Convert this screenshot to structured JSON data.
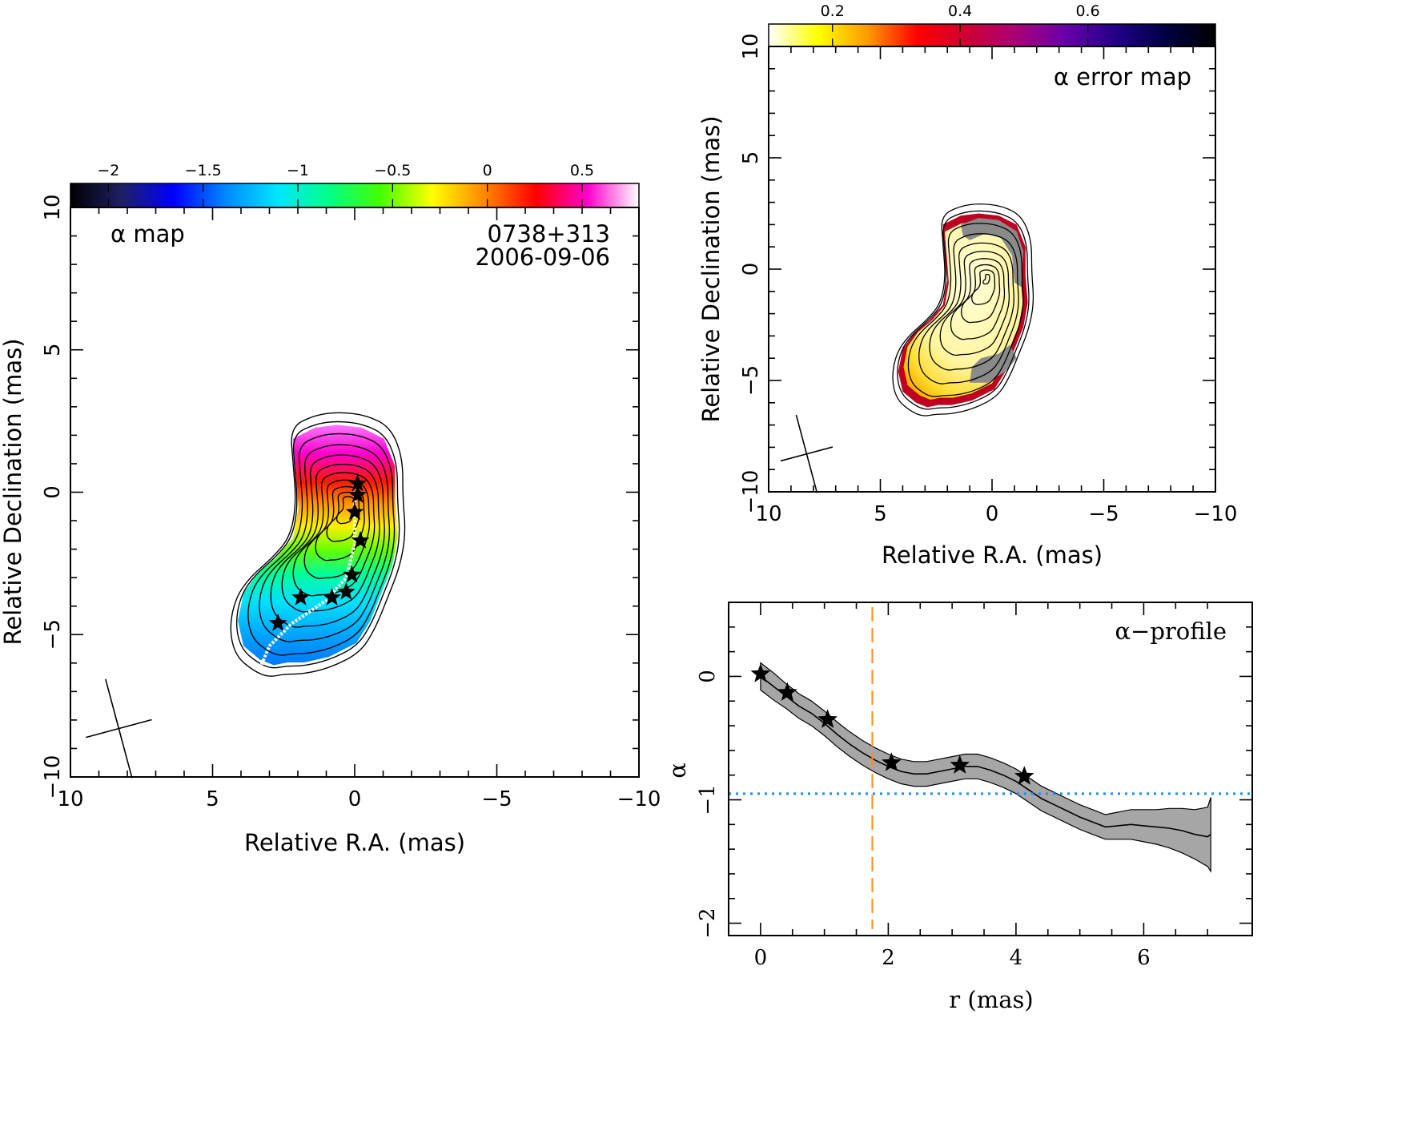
{
  "chart_data": [
    {
      "type": "heatmap",
      "panel": "alpha-map",
      "label": "α map",
      "source": "0738+313",
      "epoch": "2006-09-06",
      "xlabel": "Relative R.A. (mas)",
      "ylabel": "Relative Declination (mas)",
      "xlim": [
        10,
        -10
      ],
      "ylim": [
        -10,
        10
      ],
      "xticks": [
        10,
        5,
        0,
        -5,
        -10
      ],
      "yticks": [
        -10,
        -5,
        0,
        5,
        10
      ],
      "tick_labels": {
        "x": [
          "10",
          "5",
          "0",
          "−5",
          "−10"
        ],
        "y": [
          "−10",
          "−5",
          "0",
          "5",
          "10"
        ]
      },
      "colorbar": {
        "range": [
          -2.2,
          0.8
        ],
        "ticks": [
          -2,
          -1.5,
          -1,
          -0.5,
          0,
          0.5
        ],
        "tick_labels": [
          "−2",
          "−1.5",
          "−1",
          "−0.5",
          "0",
          "0.5"
        ],
        "colors": [
          "#000000",
          "#1f1f66",
          "#0000ff",
          "#0088ff",
          "#00e5ff",
          "#00ff88",
          "#44ff00",
          "#ffff00",
          "#ff8800",
          "#ff0000",
          "#ff00cc",
          "#ffffff"
        ]
      },
      "components": [
        {
          "ra": -0.1,
          "dec": 0.3
        },
        {
          "ra": -0.1,
          "dec": -0.1
        },
        {
          "ra": 0.0,
          "dec": -0.7
        },
        {
          "ra": -0.2,
          "dec": -1.7
        },
        {
          "ra": 0.1,
          "dec": -2.9
        },
        {
          "ra": 0.3,
          "dec": -3.5
        },
        {
          "ra": 0.8,
          "dec": -3.7
        },
        {
          "ra": 1.9,
          "dec": -3.7
        },
        {
          "ra": 2.7,
          "dec": -4.6
        }
      ],
      "ridge_line": [
        {
          "ra": 0.0,
          "dec": 0.3
        },
        {
          "ra": 0.0,
          "dec": -1.2
        },
        {
          "ra": 0.0,
          "dec": -1.8
        },
        {
          "ra": 0.3,
          "dec": -3.0
        },
        {
          "ra": 1.0,
          "dec": -3.8
        },
        {
          "ra": 2.2,
          "dec": -4.6
        },
        {
          "ra": 3.0,
          "dec": -5.4
        },
        {
          "ra": 3.3,
          "dec": -6.1
        }
      ],
      "beam": {
        "major_mas": 1.8,
        "minor_mas": 1.2,
        "pa_deg": -15
      }
    },
    {
      "type": "heatmap",
      "panel": "alpha-error-map",
      "label": "α error map",
      "xlabel": "Relative R.A. (mas)",
      "ylabel": "Relative Declination (mas)",
      "xlim": [
        10,
        -10
      ],
      "ylim": [
        -10,
        10
      ],
      "xticks": [
        10,
        5,
        0,
        -5,
        -10
      ],
      "yticks": [
        -10,
        -5,
        0,
        5,
        10
      ],
      "tick_labels": {
        "x": [
          "10",
          "5",
          "0",
          "−5",
          "−10"
        ],
        "y": [
          "−10",
          "−5",
          "0",
          "5",
          "10"
        ]
      },
      "colorbar": {
        "range": [
          0.1,
          0.8
        ],
        "ticks": [
          0.2,
          0.4,
          0.6
        ],
        "tick_labels": [
          "0.2",
          "0.4",
          "0.6"
        ],
        "colors": [
          "#ffffff",
          "#ffff00",
          "#ff9900",
          "#ff0000",
          "#cc0033",
          "#aa0077",
          "#6600aa",
          "#220088",
          "#000044",
          "#000000"
        ]
      }
    },
    {
      "type": "line",
      "panel": "alpha-profile",
      "label": "α−profile",
      "xlabel": "r (mas)",
      "ylabel": "α",
      "xlim": [
        -0.5,
        7.7
      ],
      "ylim": [
        -2.1,
        0.6
      ],
      "xticks": [
        0,
        2,
        4,
        6
      ],
      "yticks": [
        0,
        -1,
        -2
      ],
      "tick_labels": {
        "x": [
          "0",
          "2",
          "4",
          "6"
        ],
        "y": [
          "0",
          "−1",
          "−2"
        ]
      },
      "series": [
        {
          "x": [
            0,
            0.2,
            0.4,
            0.6,
            0.8,
            1.0,
            1.2,
            1.4,
            1.6,
            1.8,
            2.0,
            2.2,
            2.4,
            2.6,
            2.8,
            3.0,
            3.2,
            3.4,
            3.6,
            3.8,
            4.0,
            4.2,
            4.4,
            4.6,
            4.8,
            5.0,
            5.2,
            5.4,
            5.6,
            5.8,
            6.0,
            6.2,
            6.4,
            6.6,
            6.8,
            7.0,
            7.05
          ],
          "y": [
            0.0,
            -0.08,
            -0.16,
            -0.24,
            -0.3,
            -0.38,
            -0.47,
            -0.55,
            -0.62,
            -0.68,
            -0.73,
            -0.77,
            -0.79,
            -0.79,
            -0.77,
            -0.75,
            -0.73,
            -0.73,
            -0.76,
            -0.8,
            -0.85,
            -0.92,
            -0.99,
            -1.04,
            -1.09,
            -1.14,
            -1.18,
            -1.22,
            -1.21,
            -1.2,
            -1.21,
            -1.22,
            -1.23,
            -1.25,
            -1.28,
            -1.3,
            -1.28
          ],
          "err": [
            0.11,
            0.11,
            0.1,
            0.1,
            0.1,
            0.1,
            0.1,
            0.1,
            0.1,
            0.1,
            0.1,
            0.1,
            0.1,
            0.1,
            0.1,
            0.1,
            0.1,
            0.1,
            0.1,
            0.1,
            0.1,
            0.1,
            0.1,
            0.1,
            0.1,
            0.1,
            0.1,
            0.1,
            0.11,
            0.12,
            0.13,
            0.14,
            0.16,
            0.18,
            0.2,
            0.24,
            0.3
          ]
        }
      ],
      "component_markers": [
        {
          "x": 0.0,
          "y": 0.02
        },
        {
          "x": 0.42,
          "y": -0.13
        },
        {
          "x": 1.05,
          "y": -0.35
        },
        {
          "x": 2.05,
          "y": -0.7
        },
        {
          "x": 3.12,
          "y": -0.72
        },
        {
          "x": 4.13,
          "y": -0.81
        }
      ],
      "vertical_line": {
        "x": 1.75,
        "color": "#ff8c1a"
      },
      "horizontal_line": {
        "y": -0.95,
        "color": "#1a8fff"
      }
    }
  ]
}
